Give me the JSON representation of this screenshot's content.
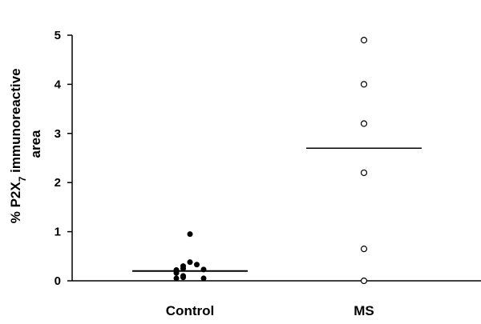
{
  "chart_data": {
    "type": "scatter",
    "categories": [
      "Control",
      "MS"
    ],
    "ylabel_line1_pre": "% P2X",
    "ylabel_line1_sub": "7",
    "ylabel_line1_post": " immunoreactive",
    "ylabel_line2": "area",
    "ylim": [
      0,
      5
    ],
    "yticks": [
      "0",
      "1",
      "2",
      "3",
      "4",
      "5"
    ],
    "grid": false,
    "series": [
      {
        "category": "Control",
        "marker": "filled-circle",
        "color": "#000000",
        "median": 0.2,
        "values": [
          0.95,
          0.38,
          0.33,
          0.3,
          0.25,
          0.23,
          0.22,
          0.2,
          0.16,
          0.1,
          0.07,
          0.05,
          0.05
        ]
      },
      {
        "category": "MS",
        "marker": "open-circle",
        "color": "#000000",
        "median": 2.7,
        "values": [
          4.9,
          4.0,
          3.2,
          2.2,
          0.65,
          0.0
        ]
      }
    ]
  }
}
